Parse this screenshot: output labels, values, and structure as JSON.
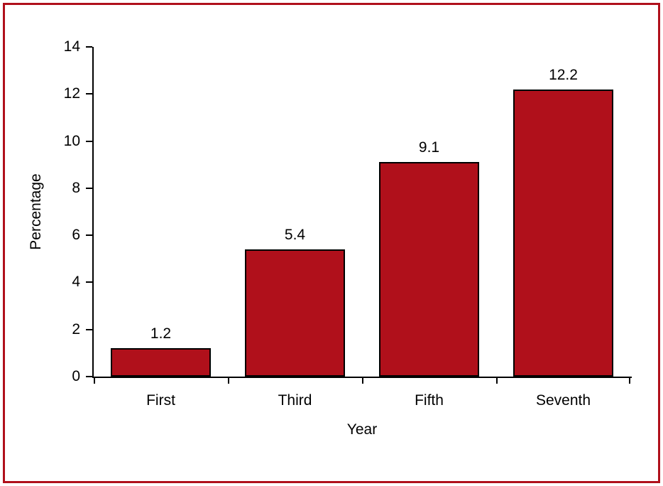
{
  "figure": {
    "background": "#ffffff",
    "border_color": "#b0101b"
  },
  "chart_data": {
    "type": "bar",
    "title": "",
    "categories": [
      "First",
      "Third",
      "Fifth",
      "Seventh"
    ],
    "values": [
      1.2,
      5.4,
      9.1,
      12.2
    ],
    "value_labels": [
      "1.2",
      "5.4",
      "9.1",
      "12.2"
    ],
    "xlabel": "Year",
    "ylabel": "Percentage",
    "ylim": [
      0,
      14
    ],
    "yticks": [
      0,
      2,
      4,
      6,
      8,
      10,
      12,
      14
    ],
    "grid": false,
    "legend": false,
    "bar_color": "#b0101b",
    "bar_border_color": "#000000",
    "axis_color": "#000000"
  }
}
